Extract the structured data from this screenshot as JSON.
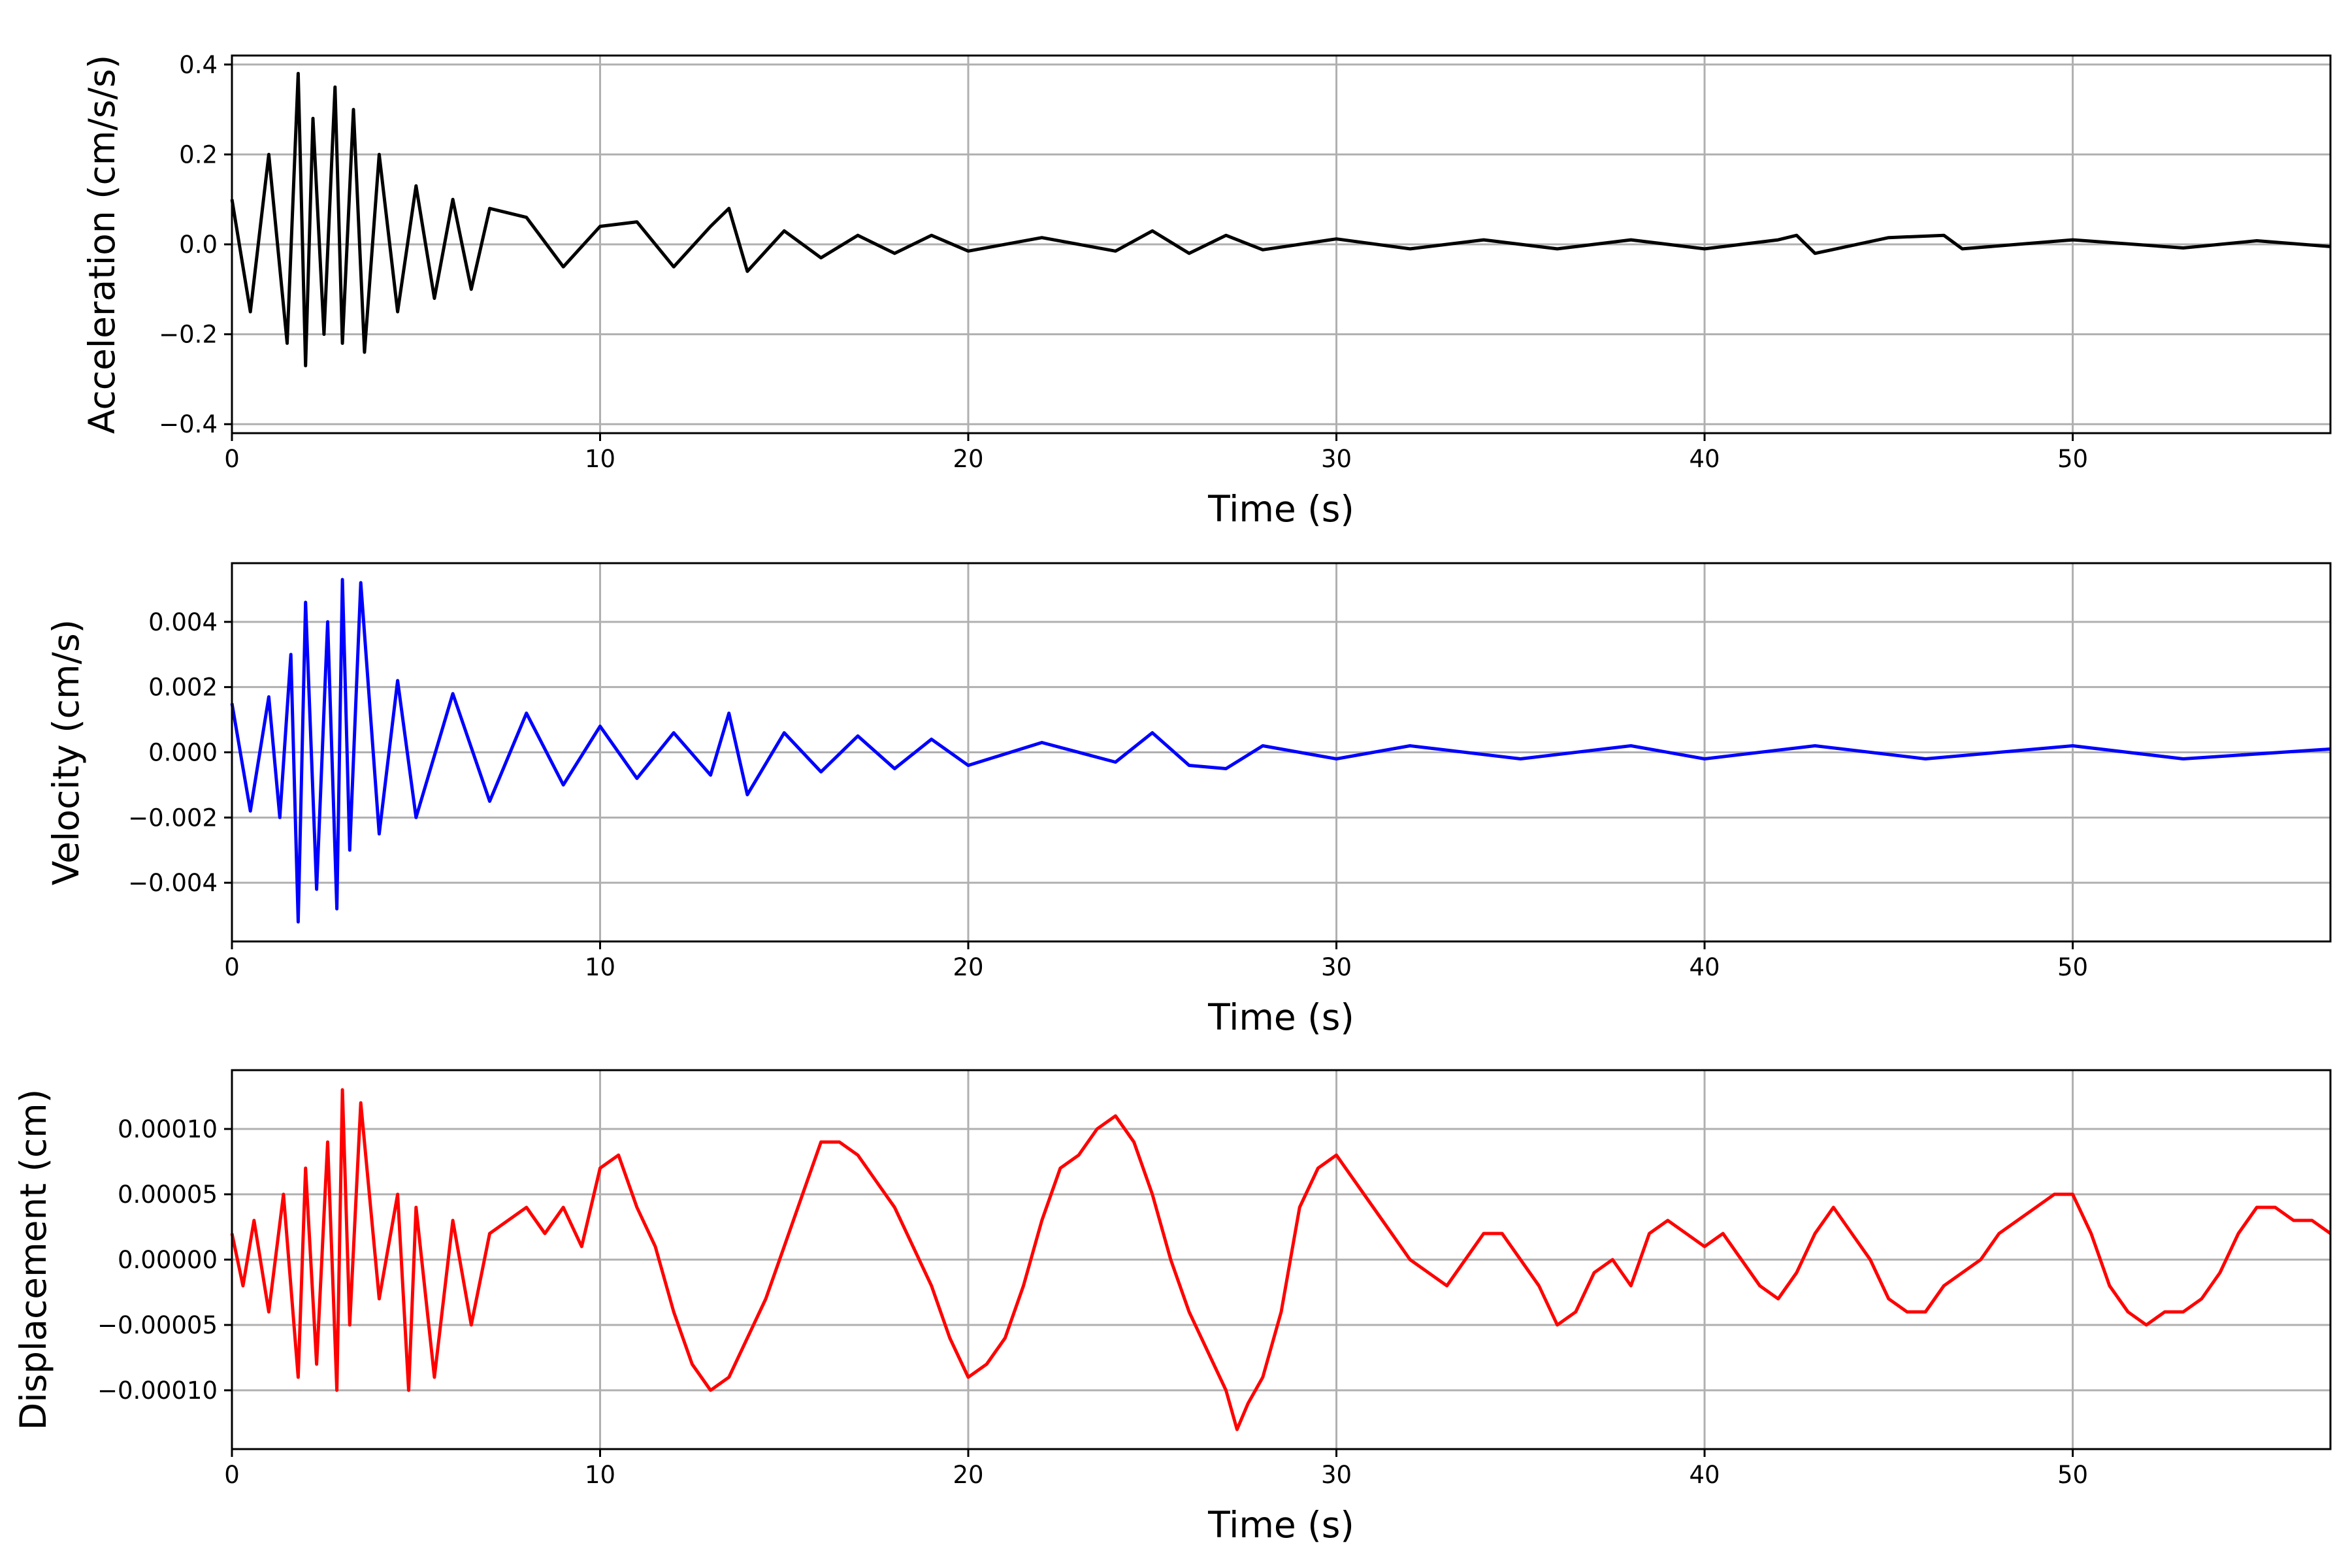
{
  "chart_data": [
    {
      "type": "line",
      "title": "",
      "xlabel": "Time (s)",
      "ylabel": "Acceleration (cm/s/s)",
      "xlim": [
        0,
        57
      ],
      "ylim": [
        -0.42,
        0.42
      ],
      "grid": true,
      "xticks": [
        0,
        10,
        20,
        30,
        40,
        50
      ],
      "xtick_labels": [
        "0",
        "10",
        "20",
        "30",
        "40",
        "50"
      ],
      "yticks": [
        -0.4,
        -0.2,
        0.0,
        0.2,
        0.4
      ],
      "ytick_labels": [
        "−0.4",
        "−0.2",
        "0.0",
        "0.2",
        "0.4"
      ],
      "series": [
        {
          "color": "#000000",
          "x": [
            0,
            0.5,
            1.0,
            1.5,
            1.8,
            2.0,
            2.2,
            2.5,
            2.8,
            3.0,
            3.3,
            3.6,
            4.0,
            4.5,
            5.0,
            5.5,
            6.0,
            6.5,
            7.0,
            8.0,
            9.0,
            10.0,
            11.0,
            12.0,
            13.0,
            13.5,
            14.0,
            15.0,
            16.0,
            17.0,
            18.0,
            19.0,
            20.0,
            22.0,
            24.0,
            25.0,
            26.0,
            27.0,
            28.0,
            30.0,
            32.0,
            34.0,
            36.0,
            38.0,
            40.0,
            42.0,
            42.5,
            43.0,
            45.0,
            46.5,
            47.0,
            50.0,
            53.0,
            55.0,
            57.0
          ],
          "y": [
            0.1,
            -0.15,
            0.2,
            -0.22,
            0.38,
            -0.27,
            0.28,
            -0.2,
            0.35,
            -0.22,
            0.3,
            -0.24,
            0.2,
            -0.15,
            0.13,
            -0.12,
            0.1,
            -0.1,
            0.08,
            0.06,
            -0.05,
            0.04,
            0.05,
            -0.05,
            0.04,
            0.08,
            -0.06,
            0.03,
            -0.03,
            0.02,
            -0.02,
            0.02,
            -0.015,
            0.015,
            -0.015,
            0.03,
            -0.02,
            0.02,
            -0.012,
            0.012,
            -0.01,
            0.01,
            -0.01,
            0.01,
            -0.01,
            0.01,
            0.02,
            -0.02,
            0.015,
            0.02,
            -0.01,
            0.01,
            -0.008,
            0.008,
            -0.005
          ]
        }
      ]
    },
    {
      "type": "line",
      "title": "",
      "xlabel": "Time (s)",
      "ylabel": "Velocity (cm/s)",
      "xlim": [
        0,
        57
      ],
      "ylim": [
        -0.0058,
        0.0058
      ],
      "grid": true,
      "xticks": [
        0,
        10,
        20,
        30,
        40,
        50
      ],
      "xtick_labels": [
        "0",
        "10",
        "20",
        "30",
        "40",
        "50"
      ],
      "yticks": [
        -0.004,
        -0.002,
        0.0,
        0.002,
        0.004
      ],
      "ytick_labels": [
        "−0.004",
        "−0.002",
        "0.000",
        "0.002",
        "0.004"
      ],
      "series": [
        {
          "color": "#0000ff",
          "x": [
            0,
            0.5,
            1.0,
            1.3,
            1.6,
            1.8,
            2.0,
            2.3,
            2.6,
            2.85,
            3.0,
            3.2,
            3.5,
            4.0,
            4.5,
            5.0,
            6.0,
            7.0,
            8.0,
            9.0,
            10.0,
            11.0,
            12.0,
            13.0,
            13.5,
            14.0,
            15.0,
            16.0,
            17.0,
            18.0,
            19.0,
            20.0,
            22.0,
            24.0,
            25.0,
            26.0,
            27.0,
            28.0,
            30.0,
            32.0,
            35.0,
            38.0,
            40.0,
            43.0,
            46.0,
            50.0,
            53.0,
            57.0
          ],
          "y": [
            0.0015,
            -0.0018,
            0.0017,
            -0.002,
            0.003,
            -0.0052,
            0.0046,
            -0.0042,
            0.004,
            -0.0048,
            0.0053,
            -0.003,
            0.0052,
            -0.0025,
            0.0022,
            -0.002,
            0.0018,
            -0.0015,
            0.0012,
            -0.001,
            0.0008,
            -0.0008,
            0.0006,
            -0.0007,
            0.0012,
            -0.0013,
            0.0006,
            -0.0006,
            0.0005,
            -0.0005,
            0.0004,
            -0.0004,
            0.0003,
            -0.0003,
            0.0006,
            -0.0004,
            -0.0005,
            0.0002,
            -0.0002,
            0.0002,
            -0.0002,
            0.0002,
            -0.0002,
            0.0002,
            -0.0002,
            0.0002,
            -0.0002,
            0.0001
          ]
        }
      ]
    },
    {
      "type": "line",
      "title": "",
      "xlabel": "Time (s)",
      "ylabel": "Displacement (cm)",
      "xlim": [
        0,
        57
      ],
      "ylim": [
        -0.000145,
        0.000145
      ],
      "grid": true,
      "xticks": [
        0,
        10,
        20,
        30,
        40,
        50
      ],
      "xtick_labels": [
        "0",
        "10",
        "20",
        "30",
        "40",
        "50"
      ],
      "yticks": [
        -0.0001,
        -5e-05,
        0.0,
        5e-05,
        0.0001
      ],
      "ytick_labels": [
        "−0.00010",
        "−0.00005",
        "0.00000",
        "0.00005",
        "0.00010"
      ],
      "series": [
        {
          "color": "#ff0000",
          "x": [
            0,
            0.3,
            0.6,
            1.0,
            1.4,
            1.8,
            2.0,
            2.3,
            2.6,
            2.85,
            3.0,
            3.2,
            3.5,
            4.0,
            4.5,
            4.8,
            5.0,
            5.5,
            6.0,
            6.5,
            7.0,
            7.5,
            8.0,
            8.5,
            9.0,
            9.5,
            10.0,
            10.5,
            11.0,
            11.5,
            12.0,
            12.5,
            13.0,
            13.5,
            14.0,
            14.5,
            15.0,
            15.5,
            16.0,
            16.5,
            17.0,
            17.5,
            18.0,
            18.5,
            19.0,
            19.5,
            20.0,
            20.5,
            21.0,
            21.5,
            22.0,
            22.5,
            23.0,
            23.5,
            24.0,
            24.5,
            25.0,
            25.5,
            26.0,
            26.5,
            27.0,
            27.3,
            27.6,
            28.0,
            28.5,
            29.0,
            29.5,
            30.0,
            30.5,
            31.0,
            31.5,
            32.0,
            32.5,
            33.0,
            33.5,
            34.0,
            34.5,
            35.0,
            35.5,
            36.0,
            36.5,
            37.0,
            37.5,
            38.0,
            38.5,
            39.0,
            39.5,
            40.0,
            40.5,
            41.0,
            41.5,
            42.0,
            42.5,
            43.0,
            43.5,
            44.0,
            44.5,
            45.0,
            45.5,
            46.0,
            46.5,
            47.0,
            47.5,
            48.0,
            48.5,
            49.0,
            49.5,
            50.0,
            50.5,
            51.0,
            51.5,
            52.0,
            52.5,
            53.0,
            53.5,
            54.0,
            54.5,
            55.0,
            55.5,
            56.0,
            56.5,
            57.0
          ],
          "y": [
            2e-05,
            -2e-05,
            3e-05,
            -4e-05,
            5e-05,
            -9e-05,
            7e-05,
            -8e-05,
            9e-05,
            -0.0001,
            0.00013,
            -5e-05,
            0.00012,
            -3e-05,
            5e-05,
            -0.0001,
            4e-05,
            -9e-05,
            3e-05,
            -5e-05,
            2e-05,
            3e-05,
            4e-05,
            2e-05,
            4e-05,
            1e-05,
            7e-05,
            8e-05,
            4e-05,
            1e-05,
            -4e-05,
            -8e-05,
            -0.0001,
            -9e-05,
            -6e-05,
            -3e-05,
            1e-05,
            5e-05,
            9e-05,
            9e-05,
            8e-05,
            6e-05,
            4e-05,
            1e-05,
            -2e-05,
            -6e-05,
            -9e-05,
            -8e-05,
            -6e-05,
            -2e-05,
            3e-05,
            7e-05,
            8e-05,
            0.0001,
            0.00011,
            9e-05,
            5e-05,
            0.0,
            -4e-05,
            -7e-05,
            -0.0001,
            -0.00013,
            -0.00011,
            -9e-05,
            -4e-05,
            4e-05,
            7e-05,
            8e-05,
            6e-05,
            4e-05,
            2e-05,
            0.0,
            -1e-05,
            -2e-05,
            0.0,
            2e-05,
            2e-05,
            0.0,
            -2e-05,
            -5e-05,
            -4e-05,
            -1e-05,
            0.0,
            -2e-05,
            2e-05,
            3e-05,
            2e-05,
            1e-05,
            2e-05,
            0.0,
            -2e-05,
            -3e-05,
            -1e-05,
            2e-05,
            4e-05,
            2e-05,
            0.0,
            -3e-05,
            -4e-05,
            -4e-05,
            -2e-05,
            -1e-05,
            0.0,
            2e-05,
            3e-05,
            4e-05,
            5e-05,
            5e-05,
            2e-05,
            -2e-05,
            -4e-05,
            -5e-05,
            -4e-05,
            -4e-05,
            -3e-05,
            -1e-05,
            2e-05,
            4e-05,
            4e-05,
            3e-05,
            3e-05,
            2e-05
          ]
        }
      ]
    }
  ]
}
